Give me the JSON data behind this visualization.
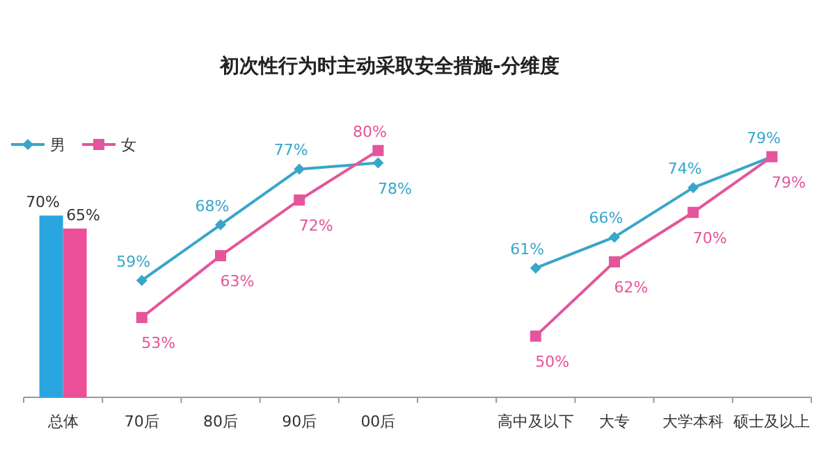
{
  "chart_data": {
    "type": "line",
    "title": "初次性行为时主动采取安全措施-分维度",
    "categories": [
      "总体",
      "70后",
      "80后",
      "90后",
      "00后",
      null,
      "高中及以下",
      "大专",
      "大学本科",
      "硕士及以上"
    ],
    "series": [
      {
        "type": "bar",
        "axis": "y",
        "color": "#29a6df",
        "values": [
          70,
          null,
          null,
          null,
          null,
          null,
          null,
          null,
          null,
          null
        ],
        "value_labels": [
          "70%",
          null,
          null,
          null,
          null,
          null,
          null,
          null,
          null,
          null
        ]
      },
      {
        "type": "bar",
        "axis": "y",
        "color": "#ea4f98",
        "values": [
          65,
          null,
          null,
          null,
          null,
          null,
          null,
          null,
          null,
          null
        ],
        "value_labels": [
          "65%",
          null,
          null,
          null,
          null,
          null,
          null,
          null,
          null,
          null
        ]
      },
      {
        "axis": "y2",
        "name": "男",
        "color": "#38a6c9",
        "marker": "diamond",
        "line_style": "solid",
        "values": [
          null,
          59,
          68,
          77,
          78,
          null,
          61,
          66,
          74,
          79
        ],
        "value_labels": [
          null,
          "59%",
          "68%",
          "77%",
          "78%",
          null,
          "61%",
          "66%",
          "74%",
          "79%"
        ]
      },
      {
        "axis": "y2",
        "name": "女",
        "color": "#e4559b",
        "marker": "square",
        "line_style": "solid",
        "values": [
          null,
          53,
          63,
          72,
          80,
          null,
          50,
          62,
          70,
          79
        ],
        "value_labels": [
          null,
          "53%",
          "63%",
          "72%",
          "80%",
          null,
          "50%",
          "62%",
          "70%",
          "79%"
        ]
      }
    ],
    "legend": "top left"
  }
}
